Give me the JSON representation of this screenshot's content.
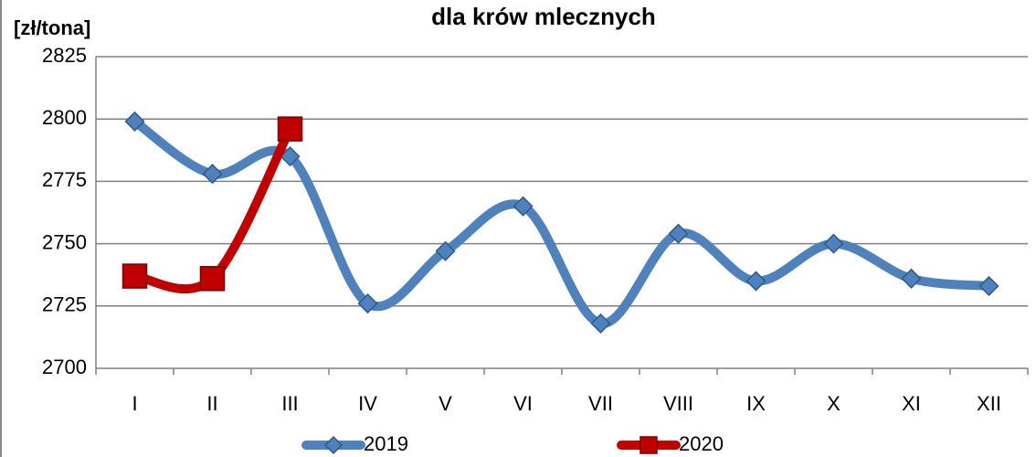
{
  "chart_data": {
    "type": "line",
    "title": "dla krów mlecznych",
    "y_label": "[zł/tona]",
    "categories": [
      "I",
      "II",
      "III",
      "IV",
      "V",
      "VI",
      "VII",
      "VIII",
      "IX",
      "X",
      "XI",
      "XII"
    ],
    "series": [
      {
        "name": "2019",
        "color": "#4f81bd",
        "marker": "diamond",
        "values": [
          2799,
          2778,
          2785,
          2726,
          2747,
          2765,
          2718,
          2754,
          2735,
          2750,
          2736,
          2733
        ]
      },
      {
        "name": "2020",
        "color": "#c00000",
        "marker": "square",
        "values": [
          2737,
          2736,
          2796,
          null,
          null,
          null,
          null,
          null,
          null,
          null,
          null,
          null
        ]
      }
    ],
    "ylim": [
      2700,
      2825
    ],
    "yticks": [
      2700,
      2725,
      2750,
      2775,
      2800,
      2825
    ],
    "grid": true,
    "legend": "bottom"
  }
}
